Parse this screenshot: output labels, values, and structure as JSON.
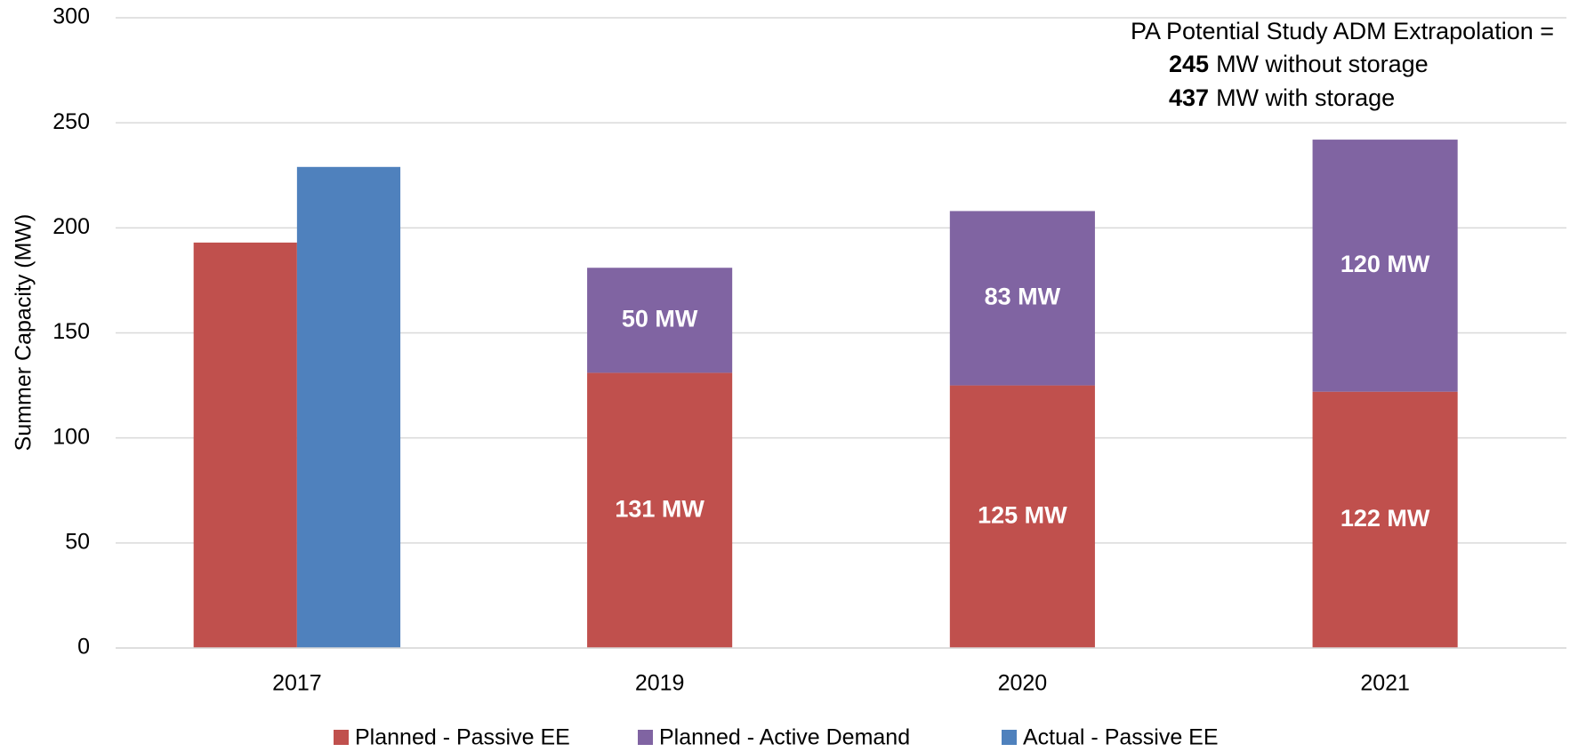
{
  "chart_data": {
    "type": "bar",
    "y_label": "Summer Capacity (MW)",
    "categories": [
      "2017",
      "2019",
      "2020",
      "2021"
    ],
    "series": [
      {
        "name": "Planned - Passive EE",
        "color": "#c0504d",
        "values": [
          193,
          131,
          125,
          122
        ],
        "value_labels": [
          null,
          "131 MW",
          "125 MW",
          "122 MW"
        ]
      },
      {
        "name": "Planned - Active Demand",
        "color": "#8064a2",
        "values": [
          null,
          50,
          83,
          120
        ],
        "value_labels": [
          null,
          "50 MW",
          "83 MW",
          "120 MW"
        ]
      },
      {
        "name": "Actual - Passive EE",
        "color": "#4f81bd",
        "values": [
          229,
          null,
          null,
          null
        ]
      }
    ],
    "ylim": [
      0,
      300
    ],
    "yticks": [
      0,
      50,
      100,
      150,
      200,
      250,
      300
    ],
    "grid": true,
    "legend": "bottom",
    "annotation": {
      "title": "PA Potential Study ADM Extrapolation =",
      "items": [
        {
          "value": 245,
          "text": "MW without storage"
        },
        {
          "value": 437,
          "text": "MW with storage"
        }
      ]
    }
  }
}
